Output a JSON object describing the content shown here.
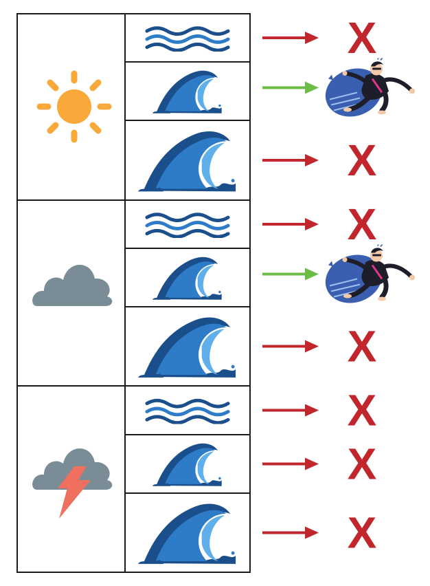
{
  "colors": {
    "grid": "#1a1a1a",
    "sun": "#f9a83a",
    "cloud": "#7a8c96",
    "lightning": "#f07060",
    "wave_dark": "#1b4f8c",
    "wave_mid": "#2e7cc8",
    "wave_light": "#5fb0ea",
    "arrow_no": "#c0262b",
    "arrow_yes": "#6cbd45",
    "cross": "#c0262b",
    "surfboard": "#3a5fb0",
    "wetsuit": "#1e1e2a",
    "wetsuit_accent": "#e0338a",
    "skin": "#f3c9a8"
  },
  "legend": {
    "weather_icons": [
      "sun-icon",
      "cloud-icon",
      "storm-cloud-icon"
    ],
    "wave_icons": [
      "small-ripple-waves-icon",
      "medium-wave-icon",
      "big-wave-icon"
    ],
    "outcome_icons": [
      "cross-icon",
      "surfer-icon"
    ]
  },
  "rows": [
    {
      "weather": "sun",
      "wave": "small",
      "arrow": "no",
      "outcome": "cross",
      "outcome_text": "X"
    },
    {
      "weather": "sun",
      "wave": "medium",
      "arrow": "yes",
      "outcome": "surfer",
      "outcome_text": ""
    },
    {
      "weather": "sun",
      "wave": "big",
      "arrow": "no",
      "outcome": "cross",
      "outcome_text": "X"
    },
    {
      "weather": "cloud",
      "wave": "small",
      "arrow": "no",
      "outcome": "cross",
      "outcome_text": "X"
    },
    {
      "weather": "cloud",
      "wave": "medium",
      "arrow": "yes",
      "outcome": "surfer",
      "outcome_text": ""
    },
    {
      "weather": "cloud",
      "wave": "big",
      "arrow": "no",
      "outcome": "cross",
      "outcome_text": "X"
    },
    {
      "weather": "storm",
      "wave": "small",
      "arrow": "no",
      "outcome": "cross",
      "outcome_text": "X"
    },
    {
      "weather": "storm",
      "wave": "medium",
      "arrow": "no",
      "outcome": "cross",
      "outcome_text": "X"
    },
    {
      "weather": "storm",
      "wave": "big",
      "arrow": "no",
      "outcome": "cross",
      "outcome_text": "X"
    }
  ]
}
